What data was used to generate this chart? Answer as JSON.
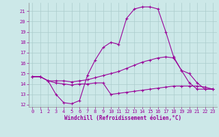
{
  "xlabel": "Windchill (Refroidissement éolien,°C)",
  "bg_color": "#cce8e8",
  "line_color": "#990099",
  "grid_color": "#aacccc",
  "xlim": [
    -0.5,
    23.5
  ],
  "ylim": [
    11.8,
    21.8
  ],
  "yticks": [
    12,
    13,
    14,
    15,
    16,
    17,
    18,
    19,
    20,
    21
  ],
  "xticks": [
    0,
    1,
    2,
    3,
    4,
    5,
    6,
    7,
    8,
    9,
    10,
    11,
    12,
    13,
    14,
    15,
    16,
    17,
    18,
    19,
    20,
    21,
    22,
    23
  ],
  "line1_x": [
    0,
    1,
    2,
    3,
    4,
    5,
    6,
    7,
    8,
    9,
    10,
    11,
    12,
    13,
    14,
    15,
    16,
    17,
    18,
    19,
    20,
    21,
    22,
    23
  ],
  "line1_y": [
    14.7,
    14.7,
    14.3,
    13.0,
    12.2,
    12.1,
    12.4,
    14.8,
    16.3,
    17.5,
    18.0,
    17.8,
    20.3,
    21.2,
    21.4,
    21.4,
    21.2,
    19.0,
    16.6,
    15.3,
    14.1,
    13.5,
    13.5,
    13.5
  ],
  "line2_x": [
    0,
    1,
    2,
    3,
    4,
    5,
    6,
    7,
    8,
    9,
    10,
    11,
    12,
    13,
    14,
    15,
    16,
    17,
    18,
    19,
    20,
    21,
    22,
    23
  ],
  "line2_y": [
    14.7,
    14.7,
    14.3,
    14.3,
    14.3,
    14.2,
    14.3,
    14.4,
    14.6,
    14.8,
    15.0,
    15.2,
    15.5,
    15.8,
    16.1,
    16.3,
    16.5,
    16.6,
    16.5,
    15.3,
    15.0,
    14.1,
    13.5,
    13.5
  ],
  "line3_x": [
    0,
    1,
    2,
    3,
    4,
    5,
    6,
    7,
    8,
    9,
    10,
    11,
    12,
    13,
    14,
    15,
    16,
    17,
    18,
    19,
    20,
    21,
    22,
    23
  ],
  "line3_y": [
    14.7,
    14.7,
    14.3,
    14.1,
    14.0,
    13.9,
    14.0,
    14.0,
    14.1,
    14.1,
    13.0,
    13.1,
    13.2,
    13.3,
    13.4,
    13.5,
    13.6,
    13.7,
    13.8,
    13.8,
    13.8,
    13.8,
    13.7,
    13.5
  ]
}
